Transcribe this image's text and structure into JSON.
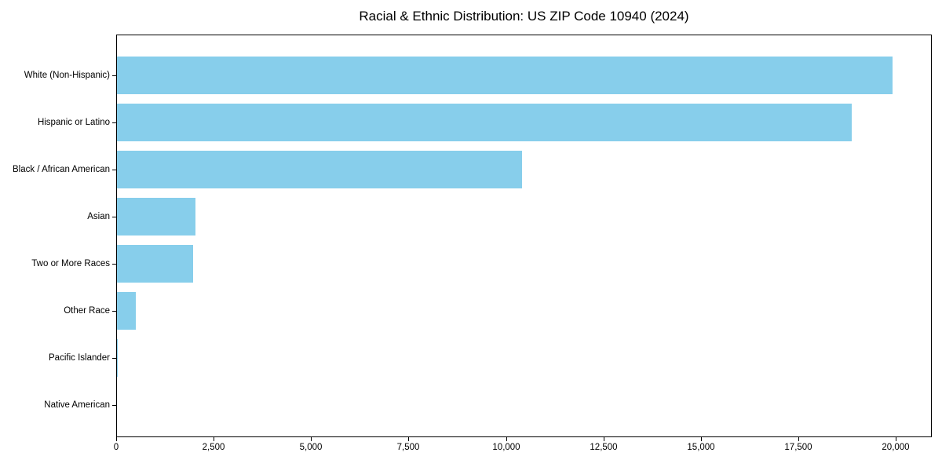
{
  "chart_data": {
    "type": "bar",
    "orientation": "horizontal",
    "title": "Racial & Ethnic Distribution: US ZIP Code 10940 (2024)",
    "categories": [
      "White (Non-Hispanic)",
      "Hispanic or Latino",
      "Black / African American",
      "Asian",
      "Two or More Races",
      "Other Race",
      "Pacific Islander",
      "Native American"
    ],
    "values": [
      19900,
      18850,
      10400,
      2020,
      1950,
      480,
      20,
      10
    ],
    "xlabel": "",
    "ylabel": "",
    "xlim": [
      0,
      20926
    ],
    "xticks": [
      {
        "value": 0,
        "label": "0"
      },
      {
        "value": 2500,
        "label": "2,500"
      },
      {
        "value": 5000,
        "label": "5,000"
      },
      {
        "value": 7500,
        "label": "7,500"
      },
      {
        "value": 10000,
        "label": "10,000"
      },
      {
        "value": 12500,
        "label": "12,500"
      },
      {
        "value": 15000,
        "label": "15,000"
      },
      {
        "value": 17500,
        "label": "17,500"
      },
      {
        "value": 20000,
        "label": "20,000"
      }
    ],
    "grid": false,
    "legend": null,
    "bar_color": "#87CEEB",
    "frame_color": "#000000",
    "background_color": "#FFFFFF"
  }
}
